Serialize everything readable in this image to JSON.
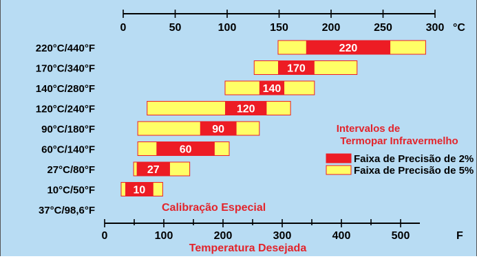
{
  "colors": {
    "panel_background": "#b8dcf3",
    "panel_border": "#555555",
    "red": "#ed1c24",
    "yellow": "#ffff66",
    "axis": "#000000",
    "title_red": "#e3242b"
  },
  "chart_data": {
    "type": "bar",
    "subtype": "floating-range",
    "top_axis": {
      "unit": "°C",
      "range": [
        0,
        300
      ],
      "tick_labels": [
        "0",
        "50",
        "100",
        "150",
        "200",
        "250",
        "300"
      ]
    },
    "bottom_axis": {
      "unit": "F",
      "label": "Temperatura Desejada",
      "range": [
        0,
        500
      ],
      "tick_labels": [
        "0",
        "100",
        "200",
        "300",
        "400",
        "500"
      ]
    },
    "rows": [
      {
        "label": "220°C/440°F",
        "value": "220",
        "outer_c": [
          149,
          291
        ],
        "inner_c": [
          176,
          257
        ]
      },
      {
        "label": "170°C/340°F",
        "value": "170",
        "outer_c": [
          126,
          225
        ],
        "inner_c": [
          149,
          184
        ]
      },
      {
        "label": "140°C/280°F",
        "value": "140",
        "outer_c": [
          98,
          184
        ],
        "inner_c": [
          131,
          155
        ]
      },
      {
        "label": "120°C/240°F",
        "value": "120",
        "outer_c": [
          23,
          161
        ],
        "inner_c": [
          98,
          138
        ]
      },
      {
        "label": "90°C/180°F",
        "value": "90",
        "outer_c": [
          14,
          131
        ],
        "inner_c": [
          74,
          109
        ]
      },
      {
        "label": "60°C/140°F",
        "value": "60",
        "outer_c": [
          14,
          102
        ],
        "inner_c": [
          32,
          88
        ]
      },
      {
        "label": "27°C/80°F",
        "value": "27",
        "outer_c": [
          10,
          64
        ],
        "inner_c": [
          13,
          45
        ]
      },
      {
        "label": "10°C/50°F",
        "value": "10",
        "outer_c": [
          -2,
          38
        ],
        "inner_c": [
          2,
          29
        ]
      },
      {
        "label": "37°C/98,6°F",
        "value": null,
        "outer_c": null,
        "inner_c": null
      }
    ],
    "special_label": "Calibração Especial",
    "legend": {
      "title_lines": [
        "Intervalos de",
        "Termopar Infravermelho"
      ],
      "items": [
        {
          "label": "Faixa de Precisão de 2%",
          "color": "#ed1c24"
        },
        {
          "label": "Faixa de Precisão de 5%",
          "color": "#ffff66"
        }
      ],
      "placement": "right"
    }
  }
}
